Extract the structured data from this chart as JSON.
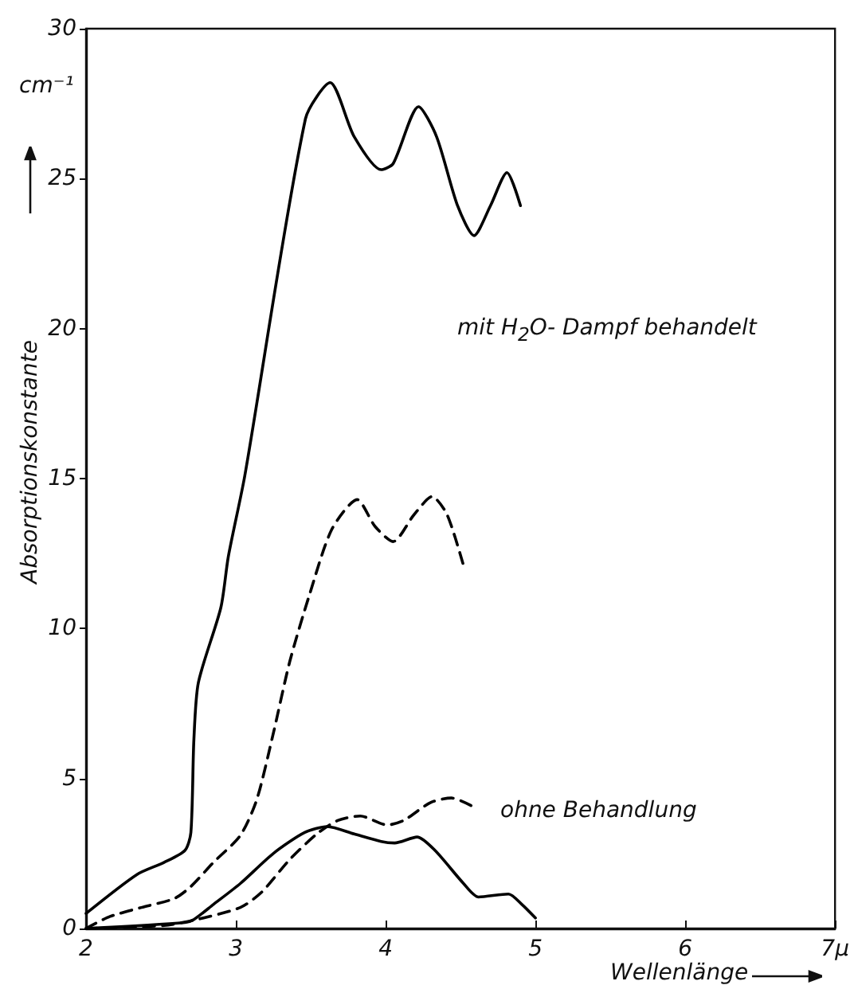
{
  "chart_data": {
    "type": "line",
    "xlabel": "Wellenlänge",
    "ylabel": "Absorptionskonstante",
    "xlim": [
      2,
      7
    ],
    "xticks": [
      2,
      3,
      4,
      5,
      6,
      {
        "value": 7,
        "label": "7µ"
      }
    ],
    "ylim": [
      0,
      30
    ],
    "yticks": [
      0,
      5,
      10,
      15,
      20,
      25,
      30
    ],
    "grid": false,
    "marker": "none",
    "annotations": [
      "cm⁻¹",
      "mit H$_{2}$O- Dampf  behandelt",
      "ohne Behandlung"
    ],
    "series": [
      {
        "color": "#000000",
        "line_style": "solid",
        "x": [
          2,
          2.34,
          2.52,
          2.66,
          2.7,
          2.72,
          2.75,
          2.9,
          2.95,
          3.06,
          3.465,
          3.63,
          3.79,
          3.97,
          4.05,
          4.22,
          4.34,
          4.48,
          4.59,
          4.7,
          4.81,
          4.9
        ],
        "values": [
          0.5,
          1.8,
          2.2,
          2.6,
          3.2,
          6.3,
          8.2,
          10.7,
          12.4,
          15.1,
          27.0,
          28.2,
          26.4,
          25.3,
          25.5,
          27.4,
          26.4,
          24.1,
          23.1,
          24.1,
          25.2,
          24.1
        ]
      },
      {
        "color": "#000000",
        "line_style": "dashed",
        "x": [
          2,
          2.16,
          2.37,
          2.59,
          2.7,
          2.85,
          3.03,
          3.14,
          3.25,
          3.36,
          3.49,
          3.64,
          3.81,
          3.93,
          4.05,
          4.19,
          4.31,
          4.41,
          4.52
        ],
        "values": [
          0,
          0.4,
          0.7,
          1.0,
          1.4,
          2.2,
          3.1,
          4.3,
          6.5,
          8.9,
          11.1,
          13.3,
          14.3,
          13.4,
          12.9,
          13.8,
          14.4,
          13.8,
          12.1
        ]
      },
      {
        "color": "#000000",
        "line_style": "solid",
        "x": [
          2,
          2.66,
          2.72,
          2.85,
          3.03,
          3.25,
          3.46,
          3.61,
          3.79,
          3.97,
          4.06,
          4.21,
          4.33,
          4.52,
          4.62,
          4.82,
          4.91,
          5.0
        ],
        "values": [
          0,
          0.2,
          0.3,
          0.8,
          1.5,
          2.5,
          3.2,
          3.4,
          3.15,
          2.9,
          2.85,
          3.05,
          2.6,
          1.5,
          1.05,
          1.15,
          0.8,
          0.35
        ]
      },
      {
        "color": "#000000",
        "line_style": "dashed",
        "x": [
          2,
          2.52,
          2.74,
          3.03,
          3.17,
          3.36,
          3.54,
          3.68,
          3.83,
          4.01,
          4.12,
          4.3,
          4.44,
          4.57
        ],
        "values": [
          0,
          0.1,
          0.3,
          0.7,
          1.2,
          2.3,
          3.15,
          3.6,
          3.75,
          3.45,
          3.6,
          4.2,
          4.35,
          4.1
        ]
      }
    ]
  }
}
